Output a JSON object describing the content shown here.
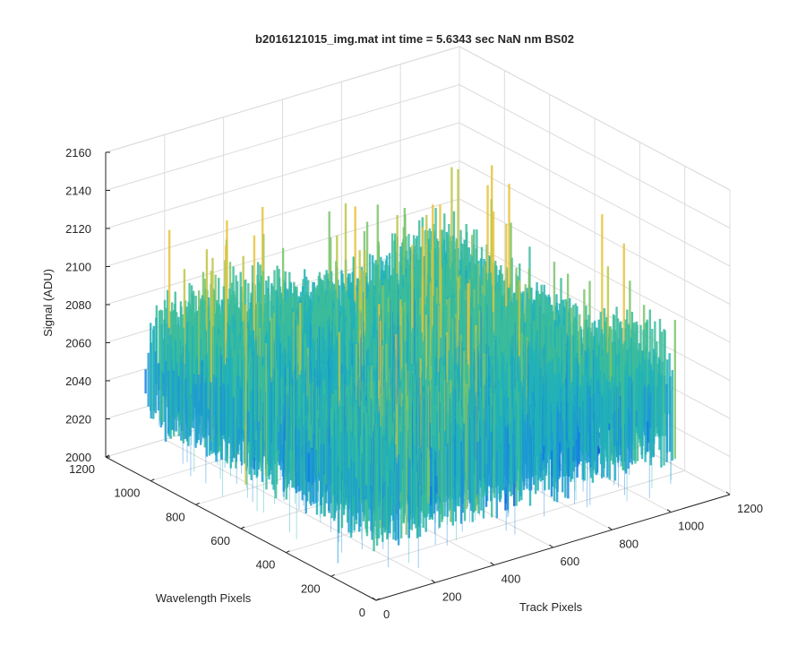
{
  "chart_data": {
    "type": "surface",
    "title": "b2016121015_img.mat int time = 5.6343 sec  NaN nm BS02",
    "xlabel": "Track Pixels",
    "ylabel": "Wavelength Pixels",
    "zlabel": "Signal (ADU)",
    "xlim": [
      0,
      1200
    ],
    "ylim": [
      0,
      1200
    ],
    "zlim": [
      2000,
      2160
    ],
    "xticks": [
      0,
      200,
      400,
      600,
      800,
      1000,
      1200
    ],
    "yticks": [
      0,
      200,
      400,
      600,
      800,
      1000,
      1200
    ],
    "zticks": [
      2000,
      2020,
      2040,
      2060,
      2080,
      2100,
      2120,
      2140,
      2160
    ],
    "grid": true,
    "box": true,
    "colormap": "parula",
    "colors": {
      "low": "#0f72df",
      "mid": "#23b1b5",
      "high": "#e2c73c",
      "axis": "#262626",
      "grid": "#dcdcdc"
    },
    "surface_summary": {
      "x_range": [
        1,
        1024
      ],
      "y_range": [
        1,
        1024
      ],
      "signal_mean": 2075,
      "signal_min": 2008,
      "signal_max": 2140
    }
  }
}
